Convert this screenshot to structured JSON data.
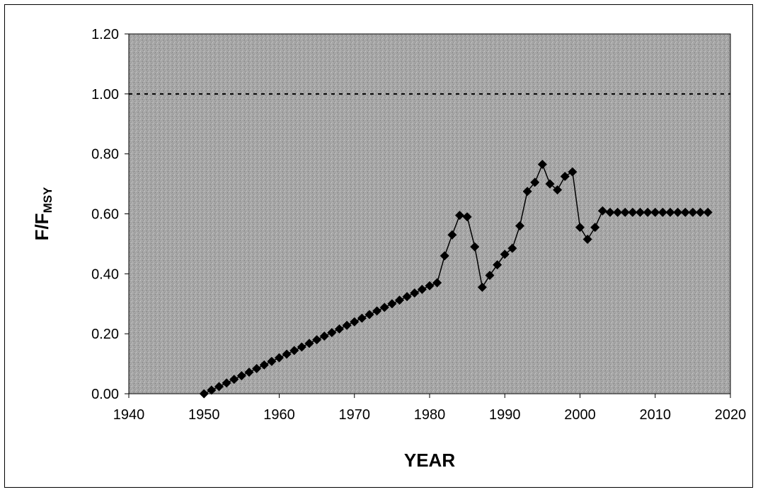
{
  "chart_data": {
    "type": "line",
    "xlabel": "YEAR",
    "ylabel_main": "F/F",
    "ylabel_sub": "MSY",
    "xlim": [
      1940,
      2020
    ],
    "ylim": [
      0,
      1.2
    ],
    "x_ticks": [
      1940,
      1950,
      1960,
      1970,
      1980,
      1990,
      2000,
      2010,
      2020
    ],
    "y_ticks": [
      0,
      0.2,
      0.4,
      0.6,
      0.8,
      1.0,
      1.2
    ],
    "y_tick_labels": [
      "0.00",
      "0.20",
      "0.40",
      "0.60",
      "0.80",
      "1.00",
      "1.20"
    ],
    "grid": false,
    "reference_line": {
      "y": 1.0,
      "style": "dotted"
    },
    "marker": "diamond",
    "colors": {
      "series": "#000000",
      "plot_background": "#a8a8a8"
    },
    "series": [
      {
        "x": [
          1950,
          1951,
          1952,
          1953,
          1954,
          1955,
          1956,
          1957,
          1958,
          1959,
          1960,
          1961,
          1962,
          1963,
          1964,
          1965,
          1966,
          1967,
          1968,
          1969,
          1970,
          1971,
          1972,
          1973,
          1974,
          1975,
          1976,
          1977,
          1978,
          1979,
          1980,
          1981,
          1982,
          1983,
          1984,
          1985,
          1986,
          1987,
          1988,
          1989,
          1990,
          1991,
          1992,
          1993,
          1994,
          1995,
          1996,
          1997,
          1998,
          1999,
          2000,
          2001,
          2002,
          2003,
          2004,
          2005,
          2006,
          2007,
          2008,
          2009,
          2010,
          2011,
          2012,
          2013,
          2014,
          2015,
          2016,
          2017
        ],
        "y": [
          0.0,
          0.012,
          0.024,
          0.036,
          0.048,
          0.06,
          0.072,
          0.084,
          0.096,
          0.108,
          0.12,
          0.132,
          0.144,
          0.156,
          0.168,
          0.18,
          0.192,
          0.204,
          0.216,
          0.228,
          0.24,
          0.252,
          0.264,
          0.276,
          0.288,
          0.3,
          0.312,
          0.324,
          0.336,
          0.348,
          0.36,
          0.37,
          0.46,
          0.53,
          0.595,
          0.59,
          0.49,
          0.355,
          0.395,
          0.43,
          0.465,
          0.485,
          0.56,
          0.675,
          0.705,
          0.765,
          0.7,
          0.68,
          0.725,
          0.74,
          0.555,
          0.515,
          0.555,
          0.61,
          0.605,
          0.605,
          0.605,
          0.605,
          0.605,
          0.605,
          0.605,
          0.605,
          0.605,
          0.605,
          0.605,
          0.605,
          0.605,
          0.605
        ]
      }
    ]
  }
}
